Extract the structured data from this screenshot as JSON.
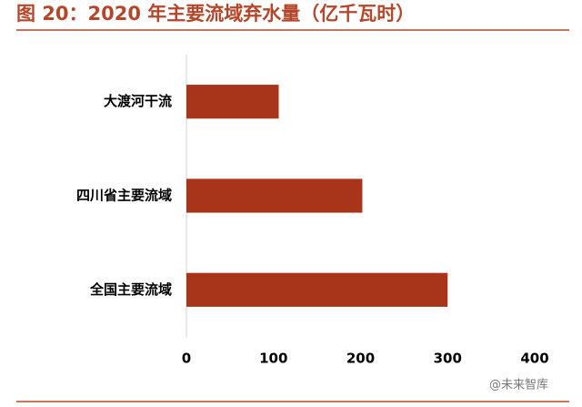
{
  "chart_data": {
    "type": "bar",
    "orientation": "horizontal",
    "title": "图 20：2020 年主要流域弃水量（亿千瓦时）",
    "categories": [
      "大渡河干流",
      "四川省主要流域",
      "全国主要流域"
    ],
    "values": [
      106,
      202,
      300
    ],
    "color": "#a8341a",
    "xlim": [
      0,
      400
    ],
    "xticks": [
      0,
      100,
      200,
      300,
      400
    ],
    "watermark": "@未来智库"
  }
}
